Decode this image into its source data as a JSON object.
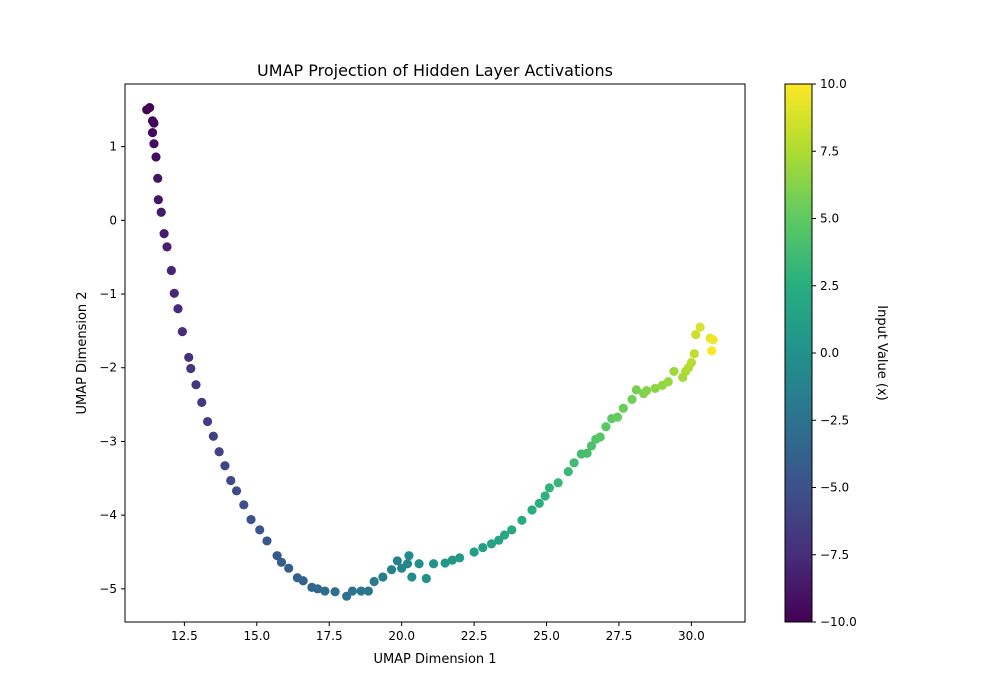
{
  "chart_data": {
    "type": "scatter",
    "title": "UMAP Projection of Hidden Layer Activations",
    "xlabel": "UMAP Dimension 1",
    "ylabel": "UMAP Dimension 2",
    "xlim": [
      10.45,
      31.85
    ],
    "ylim": [
      -5.45,
      1.85
    ],
    "xticks": [
      12.5,
      15.0,
      17.5,
      20.0,
      22.5,
      25.0,
      27.5,
      30.0
    ],
    "xtick_labels": [
      "12.5",
      "15.0",
      "17.5",
      "20.0",
      "22.5",
      "25.0",
      "27.5",
      "30.0"
    ],
    "yticks": [
      1,
      0,
      -1,
      -2,
      -3,
      -4,
      -5
    ],
    "ytick_labels": [
      "1",
      "0",
      "−1",
      "−2",
      "−3",
      "−4",
      "−5"
    ],
    "grid": false,
    "legend": "none",
    "colormap": "viridis",
    "colorbar": {
      "label": "Input Value (x)",
      "range": [
        -10,
        10
      ],
      "ticks": [
        10,
        7.5,
        5,
        2.5,
        0,
        -2.5,
        -5,
        -7.5,
        -10
      ],
      "tick_labels": [
        "10.0",
        "7.5",
        "5.0",
        "2.5",
        "0.0",
        "−2.5",
        "−5.0",
        "−7.5",
        "−10.0"
      ]
    },
    "points": [
      [
        11.2,
        1.5,
        -10.0
      ],
      [
        11.3,
        1.53,
        -9.9
      ],
      [
        11.4,
        1.35,
        -9.8
      ],
      [
        11.45,
        1.32,
        -9.7
      ],
      [
        11.4,
        1.19,
        -9.6
      ],
      [
        11.45,
        1.04,
        -9.4
      ],
      [
        11.52,
        0.86,
        -9.2
      ],
      [
        11.58,
        0.57,
        -9.0
      ],
      [
        11.6,
        0.28,
        -8.8
      ],
      [
        11.7,
        0.11,
        -8.6
      ],
      [
        11.8,
        -0.18,
        -8.4
      ],
      [
        11.9,
        -0.36,
        -8.2
      ],
      [
        12.05,
        -0.68,
        -8.0
      ],
      [
        12.15,
        -0.99,
        -7.8
      ],
      [
        12.28,
        -1.2,
        -7.6
      ],
      [
        12.43,
        -1.51,
        -7.4
      ],
      [
        12.65,
        -1.86,
        -7.2
      ],
      [
        12.72,
        -2.01,
        -7.0
      ],
      [
        12.9,
        -2.23,
        -6.8
      ],
      [
        13.1,
        -2.47,
        -6.6
      ],
      [
        13.3,
        -2.73,
        -6.4
      ],
      [
        13.5,
        -2.93,
        -6.2
      ],
      [
        13.7,
        -3.14,
        -6.0
      ],
      [
        13.9,
        -3.33,
        -5.8
      ],
      [
        14.1,
        -3.53,
        -5.6
      ],
      [
        14.3,
        -3.67,
        -5.4
      ],
      [
        14.55,
        -3.86,
        -5.2
      ],
      [
        14.8,
        -4.06,
        -5.0
      ],
      [
        15.1,
        -4.2,
        -4.8
      ],
      [
        15.35,
        -4.35,
        -4.6
      ],
      [
        15.7,
        -4.55,
        -4.4
      ],
      [
        15.85,
        -4.64,
        -4.2
      ],
      [
        16.1,
        -4.72,
        -4.0
      ],
      [
        16.4,
        -4.85,
        -3.8
      ],
      [
        16.6,
        -4.89,
        -3.6
      ],
      [
        16.9,
        -4.98,
        -3.4
      ],
      [
        17.1,
        -5.0,
        -3.2
      ],
      [
        17.35,
        -5.03,
        -3.0
      ],
      [
        17.7,
        -5.04,
        -2.8
      ],
      [
        18.1,
        -5.1,
        -2.6
      ],
      [
        18.3,
        -5.03,
        -2.4
      ],
      [
        18.6,
        -5.03,
        -2.2
      ],
      [
        18.85,
        -5.03,
        -2.0
      ],
      [
        19.05,
        -4.9,
        -1.8
      ],
      [
        19.35,
        -4.84,
        -1.6
      ],
      [
        19.65,
        -4.74,
        -1.4
      ],
      [
        19.85,
        -4.62,
        -1.2
      ],
      [
        20.0,
        -4.72,
        -1.0
      ],
      [
        20.2,
        -4.66,
        -0.8
      ],
      [
        20.25,
        -4.55,
        -0.6
      ],
      [
        20.35,
        -4.84,
        -0.4
      ],
      [
        20.6,
        -4.66,
        -0.2
      ],
      [
        20.85,
        -4.86,
        0.0
      ],
      [
        21.1,
        -4.66,
        0.2
      ],
      [
        21.5,
        -4.65,
        0.4
      ],
      [
        21.75,
        -4.61,
        0.6
      ],
      [
        22.0,
        -4.58,
        0.8
      ],
      [
        22.5,
        -4.5,
        1.0
      ],
      [
        22.8,
        -4.44,
        1.2
      ],
      [
        23.1,
        -4.39,
        1.4
      ],
      [
        23.35,
        -4.34,
        1.6
      ],
      [
        23.55,
        -4.27,
        1.8
      ],
      [
        23.8,
        -4.2,
        2.0
      ],
      [
        24.15,
        -4.07,
        2.2
      ],
      [
        24.5,
        -3.93,
        2.4
      ],
      [
        24.75,
        -3.84,
        2.6
      ],
      [
        24.95,
        -3.74,
        2.8
      ],
      [
        25.1,
        -3.63,
        3.0
      ],
      [
        25.4,
        -3.56,
        3.2
      ],
      [
        25.75,
        -3.41,
        3.4
      ],
      [
        25.95,
        -3.29,
        3.6
      ],
      [
        26.2,
        -3.17,
        3.8
      ],
      [
        26.4,
        -3.16,
        4.0
      ],
      [
        26.55,
        -3.06,
        4.2
      ],
      [
        26.7,
        -2.97,
        4.4
      ],
      [
        26.85,
        -2.94,
        4.6
      ],
      [
        27.05,
        -2.8,
        4.8
      ],
      [
        27.25,
        -2.69,
        5.0
      ],
      [
        27.45,
        -2.67,
        5.2
      ],
      [
        27.65,
        -2.55,
        5.4
      ],
      [
        27.95,
        -2.43,
        5.6
      ],
      [
        28.1,
        -2.3,
        5.8
      ],
      [
        28.35,
        -2.35,
        6.0
      ],
      [
        28.45,
        -2.31,
        6.2
      ],
      [
        28.75,
        -2.28,
        6.4
      ],
      [
        29.0,
        -2.24,
        6.6
      ],
      [
        29.2,
        -2.19,
        6.8
      ],
      [
        29.4,
        -2.05,
        7.0
      ],
      [
        29.7,
        -2.13,
        7.2
      ],
      [
        29.8,
        -2.05,
        7.4
      ],
      [
        29.9,
        -2.0,
        7.6
      ],
      [
        30.0,
        -1.93,
        7.8
      ],
      [
        30.1,
        -1.81,
        8.0
      ],
      [
        30.15,
        -1.55,
        8.4
      ],
      [
        30.3,
        -1.45,
        8.8
      ],
      [
        30.65,
        -1.6,
        9.2
      ],
      [
        30.75,
        -1.62,
        9.6
      ],
      [
        30.7,
        -1.77,
        10.0
      ]
    ]
  }
}
